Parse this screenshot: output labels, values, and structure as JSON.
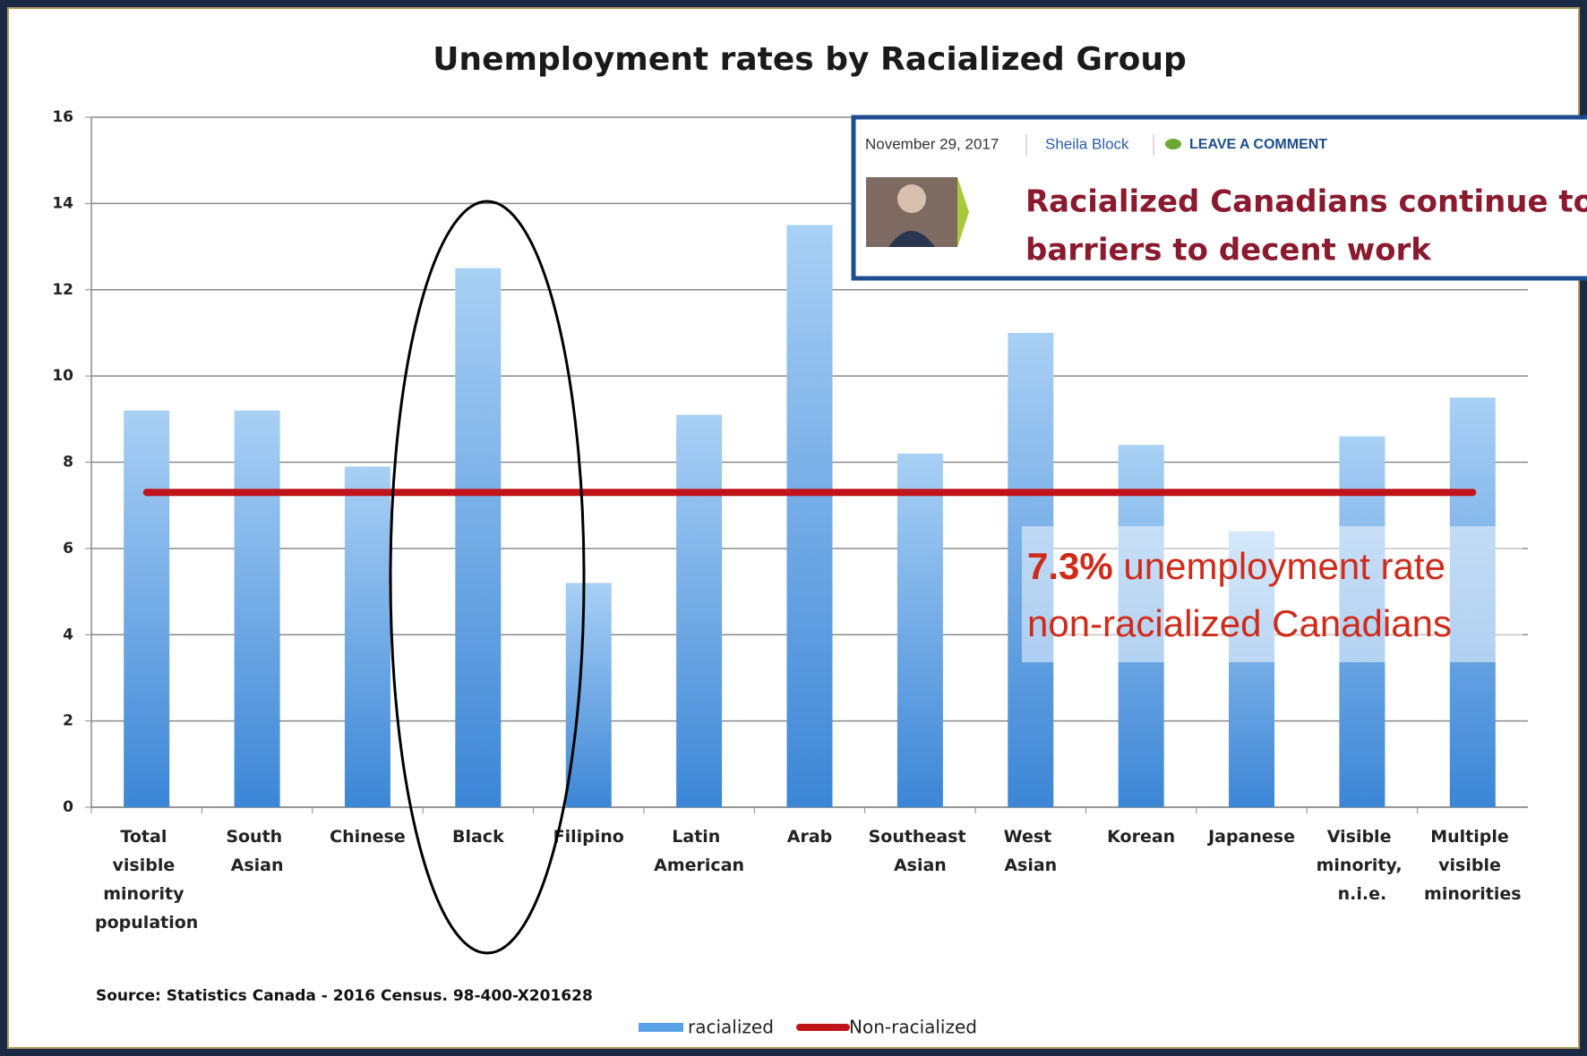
{
  "chart_data": {
    "type": "bar",
    "title": "Unemployment rates by Racialized Group",
    "categories": [
      "Total visible minority population",
      "South Asian",
      "Chinese",
      "Black",
      "Filipino",
      "Latin American",
      "Arab",
      "Southeast Asian",
      "West Asian",
      "Korean",
      "Japanese",
      "Visible minority, n.i.e.",
      "Multiple visible minorities"
    ],
    "series": [
      {
        "name": "racialized",
        "type": "bar",
        "color": "#4a90d9",
        "values": [
          9.2,
          9.2,
          7.9,
          12.5,
          5.2,
          9.1,
          13.5,
          8.2,
          11.0,
          8.4,
          6.4,
          8.6,
          9.5
        ]
      },
      {
        "name": "Non-racialized",
        "type": "line",
        "color": "#c0141a",
        "values": [
          7.3,
          7.3,
          7.3,
          7.3,
          7.3,
          7.3,
          7.3,
          7.3,
          7.3,
          7.3,
          7.3,
          7.3,
          7.3
        ]
      }
    ],
    "ylim": [
      0,
      16
    ],
    "yticks": [
      0,
      2,
      4,
      6,
      8,
      10,
      12,
      14,
      16
    ],
    "grid": true,
    "source": "Source: Statistics Canada - 2016 Census. 98-400-X201628",
    "annotation": {
      "highlight": "7.3%",
      "text1": "unemployment rate",
      "text2": "non-racialized Canadians"
    },
    "article": {
      "date": "November 29, 2017",
      "author": "Sheila Block",
      "comment": "LEAVE A COMMENT",
      "headline_1": "Racialized Canadians continue to f",
      "headline_2": "barriers to decent work"
    }
  }
}
